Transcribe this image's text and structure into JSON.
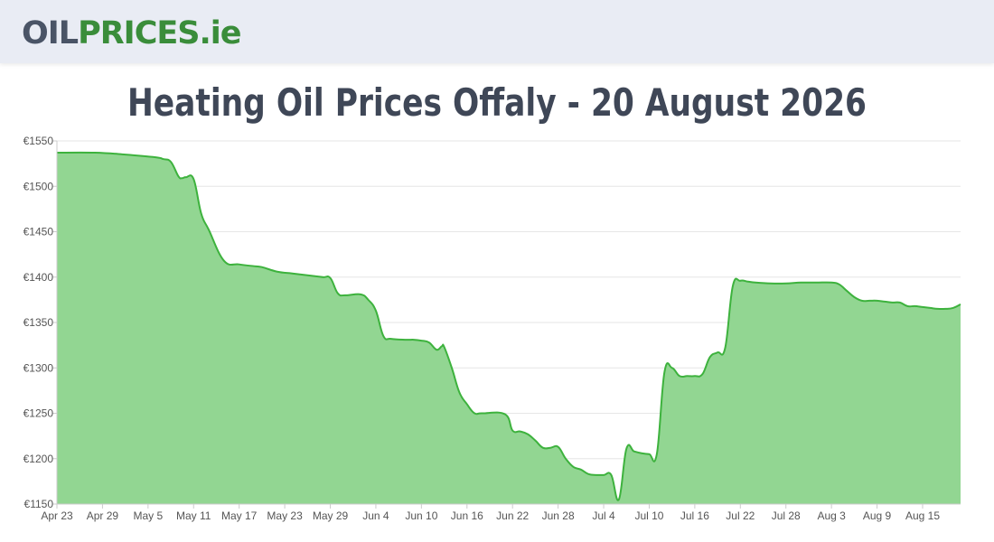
{
  "logo": {
    "part1": "OIL",
    "part2": "PRICES",
    "part3": ".ie"
  },
  "page_title": "Heating Oil Prices Offaly - 20 August 2026",
  "colors": {
    "line": "#3db23d",
    "fill": "#92d692",
    "grid": "#e6e6e6",
    "title": "#3f4757"
  },
  "chart_data": {
    "type": "area",
    "title": "",
    "xlabel": "",
    "ylabel": "",
    "ylim": [
      1150,
      1550
    ],
    "y_ticks": [
      "€1150",
      "€1200",
      "€1250",
      "€1300",
      "€1350",
      "€1400",
      "€1450",
      "€1500",
      "€1550"
    ],
    "y_tick_values": [
      1150,
      1200,
      1250,
      1300,
      1350,
      1400,
      1450,
      1500,
      1550
    ],
    "x_ticks": [
      "Apr 23",
      "Apr 29",
      "May 5",
      "May 11",
      "May 17",
      "May 23",
      "May 29",
      "Jun 4",
      "Jun 10",
      "Jun 16",
      "Jun 22",
      "Jun 28",
      "Jul 4",
      "Jul 10",
      "Jul 16",
      "Jul 22",
      "Jul 28",
      "Aug 3",
      "Aug 9",
      "Aug 15"
    ],
    "x_tick_days": [
      0,
      6,
      12,
      18,
      24,
      30,
      36,
      42,
      48,
      54,
      60,
      66,
      72,
      78,
      84,
      90,
      96,
      102,
      108,
      114
    ],
    "x_range": [
      0,
      119
    ],
    "grid": true,
    "series": [
      {
        "x": [
          0,
          5,
          9,
          13,
          14,
          15,
          16,
          16.5,
          17,
          18,
          19,
          20,
          22,
          24,
          26,
          27,
          29,
          31,
          33,
          35,
          36,
          37,
          38,
          40,
          41,
          42,
          43,
          44,
          46,
          47,
          48,
          49,
          50,
          50.7,
          51,
          52,
          53,
          54,
          55,
          56,
          59,
          60,
          61,
          62,
          63,
          64,
          65,
          66,
          67,
          68,
          69,
          70,
          71,
          72,
          73,
          74,
          75,
          76,
          77,
          78,
          79,
          80,
          81,
          82,
          83,
          84,
          85,
          86,
          87,
          88,
          89,
          90,
          91,
          92,
          94,
          96,
          98,
          100,
          102,
          103,
          104,
          105,
          106,
          107,
          108,
          109,
          110,
          111,
          112,
          113,
          114,
          115,
          116,
          117,
          118,
          119
        ],
        "values": [
          1537,
          1537,
          1535,
          1532,
          1530,
          1527,
          1511,
          1509,
          1510,
          1508,
          1470,
          1452,
          1418,
          1414,
          1412,
          1411,
          1406,
          1404,
          1402,
          1400,
          1399,
          1382,
          1380,
          1381,
          1375,
          1363,
          1335,
          1332,
          1331,
          1331,
          1330,
          1328,
          1320,
          1324,
          1323,
          1300,
          1273,
          1260,
          1250,
          1250,
          1249,
          1231,
          1230,
          1227,
          1220,
          1212,
          1212,
          1213,
          1200,
          1191,
          1188,
          1183,
          1182,
          1182,
          1182,
          1155,
          1211,
          1208,
          1206,
          1205,
          1205,
          1295,
          1300,
          1291,
          1291,
          1291,
          1293,
          1312,
          1317,
          1322,
          1390,
          1396,
          1395,
          1394,
          1393,
          1393,
          1394,
          1394,
          1394,
          1392,
          1385,
          1378,
          1374,
          1374,
          1374,
          1373,
          1372,
          1372,
          1368,
          1368,
          1367,
          1366,
          1365,
          1365,
          1366,
          1370
        ]
      }
    ]
  }
}
